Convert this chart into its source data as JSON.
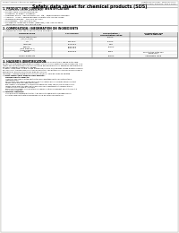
{
  "bg_color": "#f0f0eb",
  "page_bg": "#ffffff",
  "title": "Safety data sheet for chemical products (SDS)",
  "header_left": "Product Name: Lithium Ion Battery Cell",
  "header_right_line1": "Substance Number: SBT20100UCT",
  "header_right_line2": "Established / Revision: Dec.1.2010",
  "section1_title": "1. PRODUCT AND COMPANY IDENTIFICATION",
  "section1_lines": [
    "  • Product name: Lithium Ion Battery Cell",
    "  • Product code: Cylindrical-type cell",
    "     SY-B650U, SY-B850L, SY-B850A",
    "  • Company name:   Sanyo Electric Co., Ltd.,  Mobile Energy Company",
    "  • Address:   2-23-1  Kamikawakami, Sumoto-City, Hyogo, Japan",
    "  • Telephone number:   +81-799-26-4111",
    "  • Fax number:   +81-799-26-4120",
    "  • Emergency telephone number (Weekday) +81-799-26-3562",
    "     (Night and holiday) +81-799-26-4101"
  ],
  "section2_title": "2. COMPOSITION / INFORMATION ON INGREDIENTS",
  "section2_intro": "  • Substance or preparation: Preparation",
  "section2_sub": "  • Information about the chemical nature of product:",
  "table_headers": [
    "Chemical name",
    "CAS number",
    "Concentration /\nConcentration range",
    "Classification and\nhazard labeling"
  ],
  "table_rows": [
    [
      "Lithium cobalt oxide\n(LiMn/Co/Ni/O4)",
      "",
      "30-60%",
      ""
    ],
    [
      "Iron",
      "CI26-08-0",
      "35-20%",
      ""
    ],
    [
      "Aluminum",
      "7429-90-5",
      "2-5%",
      ""
    ],
    [
      "Graphite\n(Hard graphite-1)\n(Li-Mn graphite-1)",
      "7782-42-5\n7782-44-2",
      "10-25%",
      ""
    ],
    [
      "Copper",
      "7440-50-8",
      "5-15%",
      "Sensitization of the skin\ngroup No.2"
    ],
    [
      "Organic electrolyte",
      "",
      "10-20%",
      "Inflammable liquid"
    ]
  ],
  "section3_title": "3. HAZARDS IDENTIFICATION",
  "section3_para1": "For the battery cell, chemical substances are stored in a hermetically sealed metal case, designed to withstand temperature changes in pressure-connections during normal use. As a result, during normal use, there is no physical danger of ignition or explosion and there is no danger of hazardous materials leakage.",
  "section3_para2": "  However, if exposed to a fire, added mechanical shocks, decomposes, strong electric shock or any miss-use, the gas nozzle vent can be operated. The battery cell case will be breached of fire-particles, hazardous materials may be released.",
  "section3_para3": "  Moreover, if heated strongly by the surrounding fire, solid gas may be emitted.",
  "section3_most": "• Most important hazard and effects:",
  "section3_human": "Human health effects:",
  "section3_inhalation": "    Inhalation: The release of the electrolyte has an anesthesia action and stimulates in respiratory tract.",
  "section3_skin": "    Skin contact: The release of the electrolyte stimulates a skin. The electrolyte skin contact causes a sore and stimulation on the skin.",
  "section3_eye": "    Eye contact: The release of the electrolyte stimulates eyes. The electrolyte eye contact causes a sore and stimulation on the eye. Especially, substance that causes a strong inflammation of the eye is contained.",
  "section3_env": "    Environmental effects: Since a battery cell remains in the environment, do not throw out it into the environment.",
  "section3_specific": "• Specific hazards:",
  "section3_sp1": "    If the electrolyte contacts with water, it will generate detrimental hydrogen fluoride.",
  "section3_sp2": "    Since the used electrolyte is inflammable liquid, do not bring close to fire."
}
